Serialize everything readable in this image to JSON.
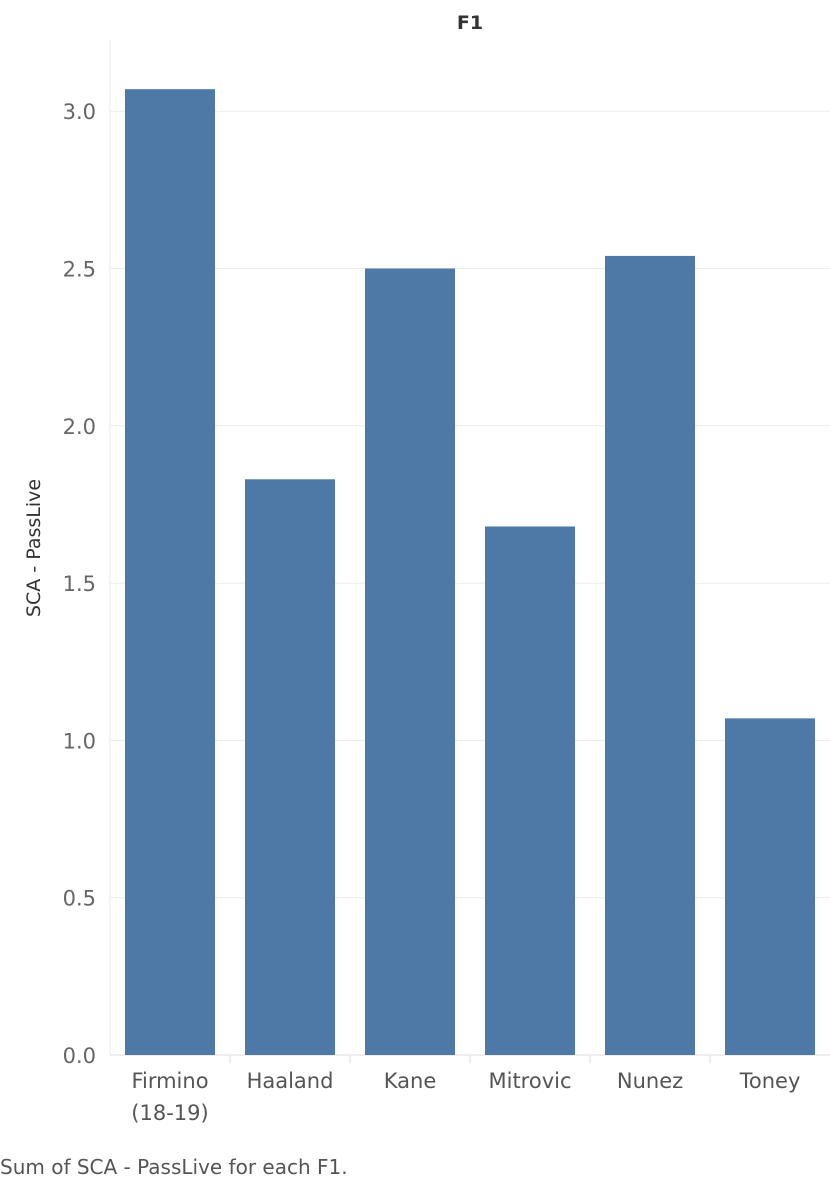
{
  "chart_data": {
    "type": "bar",
    "title": "F1",
    "xlabel": "",
    "ylabel": "SCA - PassLive",
    "categories": [
      [
        "Firmino",
        "(18-19)"
      ],
      [
        "Haaland"
      ],
      [
        "Kane"
      ],
      [
        "Mitrovic"
      ],
      [
        "Nunez"
      ],
      [
        "Toney"
      ]
    ],
    "values": [
      3.07,
      1.83,
      2.5,
      1.68,
      2.54,
      1.07
    ],
    "yticks": [
      "0.0",
      "0.5",
      "1.0",
      "1.5",
      "2.0",
      "2.5",
      "3.0"
    ],
    "ylim": [
      0,
      3.2
    ],
    "bar_color": "#4e79a7",
    "grid": true
  },
  "caption": "Sum of SCA - PassLive for each F1."
}
